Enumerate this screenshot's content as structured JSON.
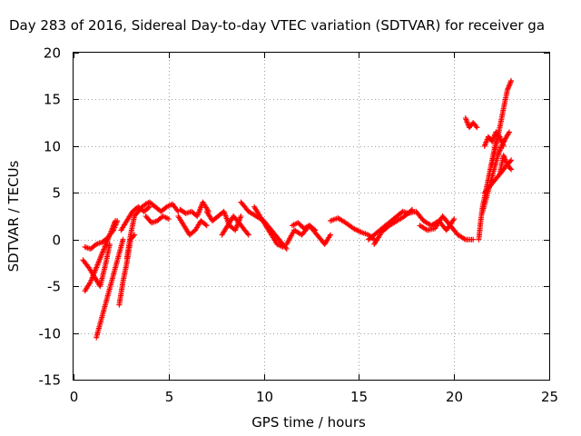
{
  "chart_data": {
    "type": "scatter",
    "title": "Day 283 of 2016, Sidereal Day-to-day VTEC variation (SDTVAR) for receiver ga",
    "xlabel": "GPS time / hours",
    "ylabel": "SDTVAR / TECUs",
    "xlim": [
      0,
      25
    ],
    "ylim": [
      -15,
      20
    ],
    "xticks": [
      0,
      5,
      10,
      15,
      20,
      25
    ],
    "yticks": [
      -15,
      -10,
      -5,
      0,
      5,
      10,
      15,
      20
    ],
    "grid": true,
    "marker": "+",
    "series": [
      {
        "name": "SDTVAR",
        "color": "#ff0000",
        "segments": [
          {
            "x": [
              0.6,
              0.9,
              1.2,
              1.5,
              1.8,
              2.1,
              2.3
            ],
            "y": [
              -0.8,
              -1.0,
              -0.5,
              -0.3,
              0.2,
              1.0,
              2.0
            ]
          },
          {
            "x": [
              0.6,
              0.9,
              1.2,
              1.5,
              1.8,
              2.1,
              2.2
            ],
            "y": [
              -5.5,
              -4.5,
              -3.0,
              -1.5,
              0.0,
              1.5,
              2.0
            ]
          },
          {
            "x": [
              0.5,
              0.8,
              1.1,
              1.4,
              1.7,
              1.9
            ],
            "y": [
              -2.2,
              -3.0,
              -4.0,
              -5.0,
              -2.5,
              -0.5
            ]
          },
          {
            "x": [
              1.2,
              1.4,
              1.6,
              1.8,
              2.0,
              2.2,
              2.4,
              2.6
            ],
            "y": [
              -10.5,
              -9.0,
              -7.5,
              -6.0,
              -4.5,
              -3.0,
              -1.5,
              0.0
            ]
          },
          {
            "x": [
              2.4,
              2.6,
              2.8,
              3.0,
              3.2
            ],
            "y": [
              -7.0,
              -4.5,
              -2.5,
              0.0,
              0.5
            ]
          },
          {
            "x": [
              2.8,
              3.0,
              3.2,
              3.4,
              3.6,
              3.8,
              4.0,
              4.3,
              4.6,
              4.9,
              5.2,
              5.5
            ],
            "y": [
              -2.0,
              0.5,
              2.5,
              3.0,
              3.5,
              3.8,
              4.0,
              3.5,
              3.0,
              3.5,
              3.8,
              3.0
            ]
          },
          {
            "x": [
              2.5,
              2.8,
              3.1,
              3.4,
              3.7,
              4.0
            ],
            "y": [
              1.0,
              2.0,
              3.0,
              3.5,
              3.0,
              3.5
            ]
          },
          {
            "x": [
              3.8,
              4.1,
              4.4,
              4.7,
              5.0
            ],
            "y": [
              2.5,
              1.8,
              2.0,
              2.5,
              2.2
            ]
          },
          {
            "x": [
              5.5,
              5.8,
              6.1,
              6.4,
              6.7,
              7.0
            ],
            "y": [
              2.5,
              1.5,
              0.5,
              1.0,
              2.0,
              1.5
            ]
          },
          {
            "x": [
              5.6,
              5.9,
              6.2,
              6.5,
              6.8,
              7.1
            ],
            "y": [
              3.2,
              2.8,
              3.0,
              2.5,
              4.0,
              3.0
            ]
          },
          {
            "x": [
              7.0,
              7.3,
              7.6,
              7.9,
              8.2,
              8.5,
              8.8
            ],
            "y": [
              3.0,
              2.0,
              2.5,
              3.0,
              1.5,
              1.0,
              2.5
            ]
          },
          {
            "x": [
              7.8,
              8.1,
              8.4,
              8.7,
              9.0,
              9.2
            ],
            "y": [
              0.5,
              1.5,
              2.5,
              1.8,
              1.0,
              0.5
            ]
          },
          {
            "x": [
              8.8,
              9.2,
              9.6,
              10.0,
              10.4,
              10.8,
              11.2
            ],
            "y": [
              4.0,
              3.0,
              2.5,
              2.0,
              1.0,
              0.0,
              -1.0
            ]
          },
          {
            "x": [
              9.5,
              9.8,
              10.1,
              10.4,
              10.7,
              11.0
            ],
            "y": [
              3.5,
              2.5,
              1.5,
              0.5,
              -0.5,
              -0.8
            ]
          },
          {
            "x": [
              11.2,
              11.6,
              12.0,
              12.4,
              12.8,
              13.2,
              13.5
            ],
            "y": [
              -0.5,
              1.0,
              0.5,
              1.5,
              0.5,
              -0.5,
              0.5
            ]
          },
          {
            "x": [
              11.5,
              11.8,
              12.1,
              12.4,
              12.7
            ],
            "y": [
              1.5,
              1.8,
              1.2,
              1.5,
              1.0
            ]
          },
          {
            "x": [
              13.5,
              13.9,
              14.3,
              14.7,
              15.1,
              15.5,
              15.8
            ],
            "y": [
              2.0,
              2.3,
              1.8,
              1.2,
              0.8,
              0.5,
              0.0
            ]
          },
          {
            "x": [
              15.5,
              15.8,
              16.1,
              16.4,
              16.7,
              17.0,
              17.3,
              17.6
            ],
            "y": [
              0.0,
              0.5,
              1.0,
              1.5,
              2.0,
              2.5,
              3.0,
              2.8
            ]
          },
          {
            "x": [
              15.8,
              16.2,
              16.6,
              17.0,
              17.4,
              17.8
            ],
            "y": [
              -0.5,
              0.8,
              1.5,
              2.0,
              2.5,
              3.2
            ]
          },
          {
            "x": [
              17.6,
              18.0,
              18.4,
              18.8,
              19.2,
              19.6,
              20.0
            ],
            "y": [
              2.8,
              3.0,
              2.0,
              1.5,
              2.0,
              1.0,
              2.2
            ]
          },
          {
            "x": [
              18.2,
              18.6,
              19.0,
              19.4,
              19.8,
              20.2,
              20.6,
              21.0
            ],
            "y": [
              1.5,
              1.0,
              1.2,
              2.5,
              1.5,
              0.5,
              0.0,
              0.0
            ]
          },
          {
            "x": [
              20.6,
              20.8,
              21.0,
              21.2
            ],
            "y": [
              13.0,
              12.0,
              12.5,
              12.0
            ]
          },
          {
            "x": [
              21.3,
              21.4,
              21.5,
              21.6,
              21.7,
              21.8,
              21.9,
              22.0,
              22.1,
              22.2
            ],
            "y": [
              0.0,
              2.0,
              3.5,
              4.5,
              5.5,
              6.5,
              7.5,
              8.5,
              9.5,
              10.5
            ]
          },
          {
            "x": [
              21.5,
              21.7,
              21.9,
              22.1,
              22.3,
              22.5,
              22.7,
              22.9
            ],
            "y": [
              3.0,
              4.5,
              6.0,
              7.5,
              9.0,
              10.0,
              10.8,
              11.5
            ]
          },
          {
            "x": [
              21.6,
              21.8,
              22.0,
              22.2,
              22.4,
              22.6,
              22.8,
              23.0
            ],
            "y": [
              5.0,
              5.5,
              6.0,
              6.5,
              7.0,
              7.5,
              8.0,
              8.5
            ]
          },
          {
            "x": [
              22.0,
              22.2,
              22.4,
              22.6,
              22.8,
              23.0
            ],
            "y": [
              8.0,
              10.0,
              12.0,
              14.0,
              16.0,
              17.0
            ]
          },
          {
            "x": [
              21.6,
              21.8,
              22.0,
              22.2,
              22.4,
              22.6
            ],
            "y": [
              10.0,
              11.0,
              10.5,
              11.5,
              11.0,
              10.0
            ]
          },
          {
            "x": [
              22.4,
              22.6,
              22.8,
              23.0
            ],
            "y": [
              7.0,
              9.0,
              8.0,
              7.5
            ]
          }
        ]
      }
    ]
  }
}
